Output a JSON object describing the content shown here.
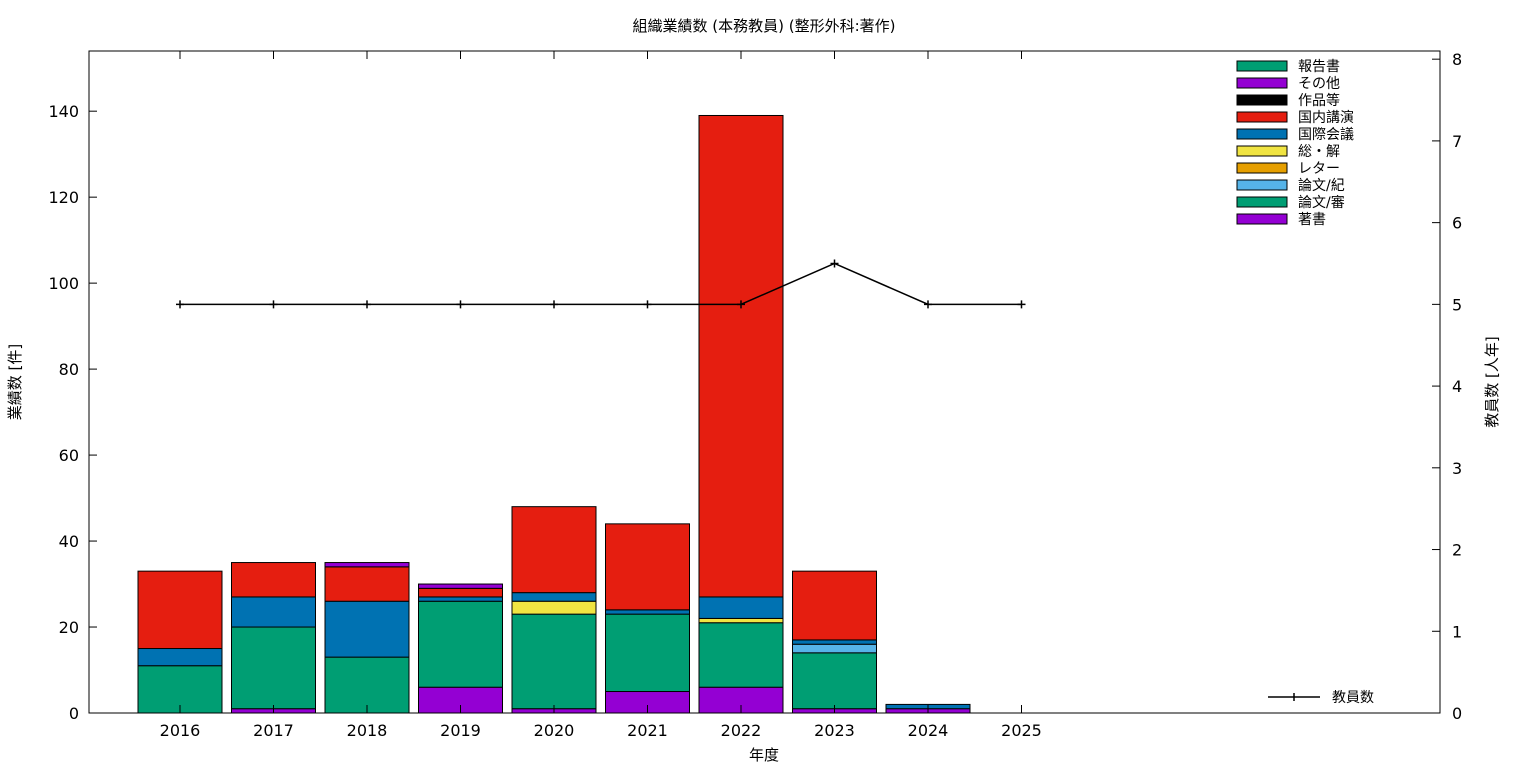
{
  "chart_data": {
    "type": "bar",
    "stacked": true,
    "title": "組織業績数 (本務教員) (整形外科:著作)",
    "xlabel": "年度",
    "ylabel": "業績数 [件]",
    "y2label": "教員数 [人年]",
    "categories": [
      "2016",
      "2017",
      "2018",
      "2019",
      "2020",
      "2021",
      "2022",
      "2023",
      "2024",
      "2025"
    ],
    "ylim": [
      0,
      154
    ],
    "yticks": [
      0,
      20,
      40,
      60,
      80,
      100,
      120,
      140
    ],
    "y2lim": [
      0,
      8.1
    ],
    "y2ticks": [
      0,
      1,
      2,
      3,
      4,
      5,
      6,
      7,
      8
    ],
    "legend_position": "top-right",
    "series": [
      {
        "name": "著書",
        "color": "#9400d3",
        "values": [
          0,
          1,
          0,
          6,
          1,
          5,
          6,
          1,
          1,
          0
        ]
      },
      {
        "name": "論文/審",
        "color": "#009e73",
        "values": [
          11,
          19,
          13,
          20,
          22,
          18,
          15,
          13,
          0,
          0
        ]
      },
      {
        "name": "論文/紀",
        "color": "#56b4e9",
        "values": [
          0,
          0,
          0,
          0,
          0,
          0,
          0,
          2,
          0,
          0
        ]
      },
      {
        "name": "レター",
        "color": "#e69f00",
        "values": [
          0,
          0,
          0,
          0,
          0,
          0,
          0,
          0,
          0,
          0
        ]
      },
      {
        "name": "総・解",
        "color": "#f0e442",
        "values": [
          0,
          0,
          0,
          0,
          3,
          0,
          1,
          0,
          0,
          0
        ]
      },
      {
        "name": "国際会議",
        "color": "#0072b2",
        "values": [
          4,
          7,
          13,
          1,
          2,
          1,
          5,
          1,
          1,
          0
        ]
      },
      {
        "name": "国内講演",
        "color": "#e51e10",
        "values": [
          18,
          8,
          8,
          2,
          20,
          20,
          112,
          16,
          0,
          0
        ]
      },
      {
        "name": "作品等",
        "color": "#000000",
        "values": [
          0,
          0,
          0,
          0,
          0,
          0,
          0,
          0,
          0,
          0
        ]
      },
      {
        "name": "その他",
        "color": "#9400d3",
        "values": [
          0,
          0,
          1,
          1,
          0,
          0,
          0,
          0,
          0,
          0
        ]
      },
      {
        "name": "報告書",
        "color": "#009e73",
        "values": [
          0,
          0,
          0,
          0,
          0,
          0,
          0,
          0,
          0,
          0
        ]
      }
    ],
    "line_series": {
      "name": "教員数",
      "color": "#000000",
      "axis": "y2",
      "values": [
        5,
        5,
        5,
        5,
        5,
        5,
        5,
        5.5,
        5,
        5
      ]
    }
  }
}
